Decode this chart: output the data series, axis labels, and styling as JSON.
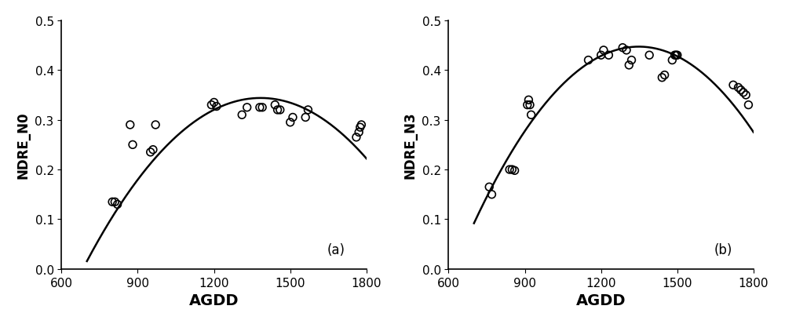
{
  "plot_a": {
    "label": "(a)",
    "ylabel": "NDRE_N0",
    "scatter_x": [
      800,
      810,
      820,
      870,
      880,
      950,
      960,
      970,
      1190,
      1200,
      1210,
      1310,
      1330,
      1380,
      1390,
      1440,
      1450,
      1460,
      1500,
      1510,
      1560,
      1570,
      1760,
      1770,
      1775,
      1780
    ],
    "scatter_y": [
      0.135,
      0.135,
      0.13,
      0.29,
      0.25,
      0.235,
      0.24,
      0.29,
      0.33,
      0.335,
      0.327,
      0.31,
      0.325,
      0.325,
      0.325,
      0.33,
      0.32,
      0.32,
      0.295,
      0.305,
      0.305,
      0.32,
      0.265,
      0.275,
      0.285,
      0.29
    ],
    "fit_points_x": [
      750,
      1285,
      1800
    ],
    "fit_points_y": [
      0.062,
      0.337,
      0.222
    ],
    "curve_x_start": 700,
    "curve_x_end": 1800
  },
  "plot_b": {
    "label": "(b)",
    "ylabel": "NDRE_N3",
    "scatter_x": [
      760,
      770,
      840,
      850,
      860,
      910,
      915,
      920,
      925,
      1150,
      1200,
      1210,
      1230,
      1285,
      1300,
      1310,
      1320,
      1390,
      1440,
      1450,
      1480,
      1490,
      1495,
      1500,
      1720,
      1740,
      1750,
      1760,
      1770,
      1780
    ],
    "scatter_y": [
      0.165,
      0.15,
      0.2,
      0.2,
      0.198,
      0.33,
      0.34,
      0.33,
      0.31,
      0.42,
      0.43,
      0.44,
      0.43,
      0.445,
      0.44,
      0.41,
      0.42,
      0.43,
      0.385,
      0.39,
      0.42,
      0.43,
      0.43,
      0.43,
      0.37,
      0.365,
      0.36,
      0.355,
      0.35,
      0.33
    ],
    "fit_points_x": [
      700,
      1300,
      1800
    ],
    "fit_points_y": [
      0.092,
      0.445,
      0.275
    ],
    "curve_x_start": 700,
    "curve_x_end": 1800
  },
  "xlabel": "AGDD",
  "xlim": [
    600,
    1800
  ],
  "ylim": [
    0.0,
    0.5
  ],
  "yticks": [
    0.0,
    0.1,
    0.2,
    0.3,
    0.4,
    0.5
  ],
  "xticks": [
    600,
    900,
    1200,
    1500,
    1800
  ],
  "marker": "o",
  "markersize": 7,
  "linewidth": 1.8,
  "line_color": "black",
  "scatter_color": "none",
  "scatter_edgecolor": "black",
  "background_color": "white",
  "label_fontsize": 12,
  "tick_fontsize": 11,
  "xlabel_fontsize": 14
}
